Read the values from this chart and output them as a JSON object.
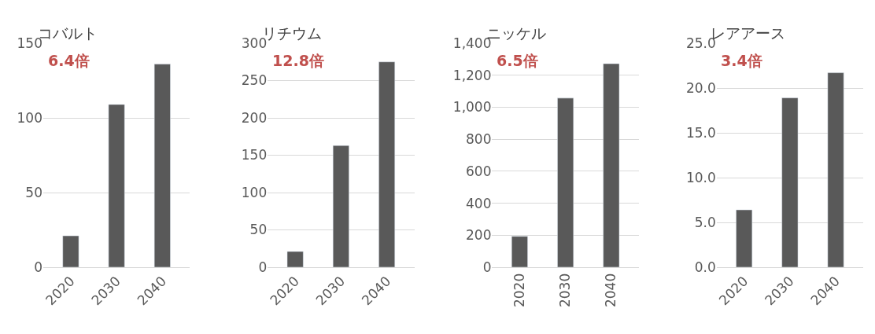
{
  "chart_data": [
    {
      "type": "bar",
      "title": "コバルト",
      "categories": [
        "2020",
        "2030",
        "2040"
      ],
      "values": [
        21,
        109,
        136
      ],
      "color": "#595959",
      "ylim": [
        0,
        150
      ],
      "yticks": [
        0,
        50,
        100,
        150
      ],
      "grid": "y",
      "annotations": [
        "6.4倍"
      ]
    },
    {
      "type": "bar",
      "title": "リチウム",
      "categories": [
        "2020",
        "2030",
        "2040"
      ],
      "values": [
        21,
        163,
        275
      ],
      "color": "#595959",
      "ylim": [
        0,
        300
      ],
      "yticks": [
        0,
        50,
        100,
        150,
        200,
        250,
        300
      ],
      "grid": "y",
      "annotations": [
        "12.8倍"
      ]
    },
    {
      "type": "bar",
      "title": "ニッケル",
      "categories": [
        "2020",
        "2030",
        "2040"
      ],
      "values": [
        193,
        1057,
        1272
      ],
      "color": "#595959",
      "ylim": [
        0,
        1400
      ],
      "yticks": [
        0,
        200,
        400,
        600,
        800,
        {
          "value": 1000,
          "label": "1,000"
        },
        {
          "value": 1200,
          "label": "1,200"
        },
        {
          "value": 1400,
          "label": "1,400"
        }
      ],
      "grid": "y",
      "annotations": [
        "6.5倍"
      ]
    },
    {
      "type": "bar",
      "title": "レアアース",
      "categories": [
        "2020",
        "2030",
        "2040"
      ],
      "values": [
        6.4,
        18.9,
        21.7
      ],
      "color": "#595959",
      "ylim": [
        0,
        25
      ],
      "yticks": [
        {
          "value": 0,
          "label": "0.0"
        },
        {
          "value": 5,
          "label": "5.0"
        },
        {
          "value": 10,
          "label": "10.0"
        },
        {
          "value": 15,
          "label": "15.0"
        },
        {
          "value": 20,
          "label": "20.0"
        },
        {
          "value": 25,
          "label": "25.0"
        }
      ],
      "grid": "y",
      "annotations": [
        "3.4倍"
      ]
    }
  ]
}
